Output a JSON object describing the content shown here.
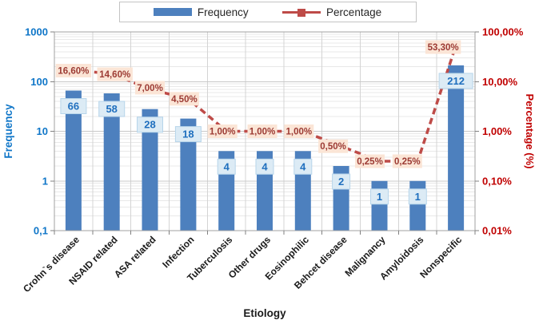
{
  "legend": {
    "items": [
      {
        "label": "Frequency",
        "swatch": "bar"
      },
      {
        "label": "Percentage",
        "swatch": "line-marker"
      }
    ]
  },
  "chart_data": {
    "type": "bar+line (dual log axes)",
    "categories": [
      "Crohn`s disease",
      "NSAID related",
      "ASA related",
      "Infection",
      "Tuberculosis",
      "Other drugs",
      "Eosinophilic",
      "Behcet disease",
      "Malignancy",
      "Amyloidosis",
      "Nonspecific"
    ],
    "series": [
      {
        "name": "Frequency",
        "type": "bar",
        "axis": "left",
        "values": [
          66,
          58,
          28,
          18,
          4,
          4,
          4,
          2,
          1,
          1,
          212
        ],
        "labels": [
          "66",
          "58",
          "28",
          "18",
          "4",
          "4",
          "4",
          "2",
          "1",
          "1",
          "212"
        ]
      },
      {
        "name": "Percentage",
        "type": "line",
        "axis": "right",
        "values": [
          16.6,
          14.6,
          7.0,
          4.5,
          1.0,
          1.0,
          1.0,
          0.5,
          0.25,
          0.25,
          53.3
        ],
        "labels": [
          "16,60%",
          "14,60%",
          "7,00%",
          "4,50%",
          "1,00%",
          "1,00%",
          "1,00%",
          "0,50%",
          "0,25%",
          "0,25%",
          "53,30%"
        ],
        "label_offsets": [
          [
            0,
            0
          ],
          [
            4,
            1
          ],
          [
            0,
            -2
          ],
          [
            -5,
            0
          ],
          [
            -5,
            0
          ],
          [
            -3,
            0
          ],
          [
            -5,
            0
          ],
          [
            -10,
            0
          ],
          [
            -12,
            0
          ],
          [
            -13,
            0
          ],
          [
            -16,
            2
          ]
        ]
      }
    ],
    "x_axis": {
      "title": "Etiology"
    },
    "left_axis": {
      "title": "Frequency",
      "scale": "log",
      "min": 0.1,
      "max": 1000,
      "ticks": [
        "1000",
        "100",
        "10",
        "1",
        "0,1"
      ]
    },
    "right_axis": {
      "title": "Percentage (%)",
      "scale": "log",
      "min": 0.01,
      "max": 100,
      "ticks": [
        "100,00%",
        "10,00%",
        "1,00%",
        "0,10%",
        "0,01%"
      ]
    },
    "grid": {
      "major": true,
      "minor_log": true,
      "vertical": true
    },
    "legend_position": "top-center",
    "colors": {
      "bar": "#4d80be",
      "bar_label_bg": "#dcebf5",
      "bar_label_border": "#b7d5ea",
      "bar_label_text": "#1f6fbe",
      "line": "#be4b48",
      "pct_label_bg": "#fbe5d6",
      "pct_label_text": "#9c3a33",
      "left_axis_text": "#0f76c8",
      "right_axis_text": "#c00000",
      "x_axis_text": "#1a1a1a",
      "grid_major": "#c8c8c8",
      "grid_minor": "#e8e8e8",
      "grid_vertical": "#d4d4d4",
      "plot_border": "#a0a0a0",
      "tick": "#808080"
    }
  }
}
